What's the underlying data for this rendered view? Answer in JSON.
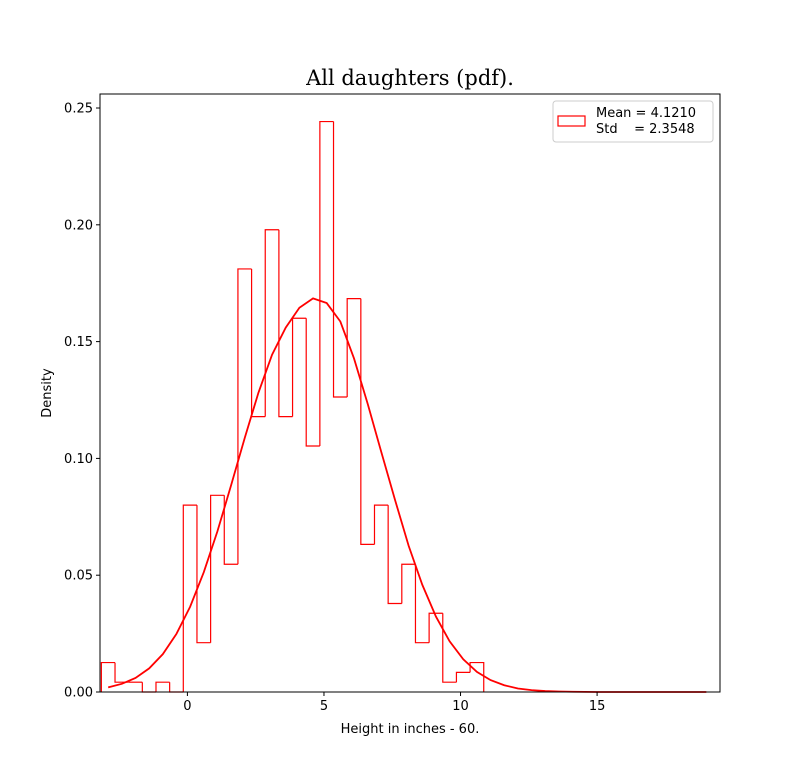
{
  "chart_data": {
    "type": "bar",
    "title": "All daughters (pdf).",
    "xlabel": "Height in inches - 60.",
    "ylabel": "Density",
    "xlim": [
      -3.2,
      19.5
    ],
    "ylim": [
      0,
      0.256
    ],
    "xticks": [
      0,
      5,
      10,
      15
    ],
    "yticks": [
      0.0,
      0.05,
      0.1,
      0.15,
      0.2,
      0.25
    ],
    "xtick_labels": [
      "0",
      "5",
      "10",
      "15"
    ],
    "ytick_labels": [
      "0.00",
      "0.05",
      "0.10",
      "0.15",
      "0.20",
      "0.25"
    ],
    "grid": false,
    "legend_position": "top-right",
    "color": "#ff0000",
    "histogram": {
      "style": "step",
      "bin_edges": [
        -3.15,
        -2.65,
        -2.15,
        -1.65,
        -1.15,
        -0.65,
        -0.15,
        0.35,
        0.85,
        1.35,
        1.85,
        2.35,
        2.85,
        3.35,
        3.85,
        4.35,
        4.85,
        5.35,
        5.85,
        6.35,
        6.85,
        7.35,
        7.85,
        8.35,
        8.85,
        9.35,
        9.85,
        10.35,
        10.85
      ],
      "density": [
        0.0126,
        0.0042,
        0.0042,
        0.0,
        0.0042,
        0.0,
        0.08,
        0.0211,
        0.0842,
        0.0547,
        0.1811,
        0.1179,
        0.1979,
        0.1179,
        0.16,
        0.1053,
        0.2442,
        0.1263,
        0.1684,
        0.0632,
        0.08,
        0.0379,
        0.0547,
        0.0211,
        0.0337,
        0.0042,
        0.0084,
        0.0126
      ]
    },
    "curve": {
      "type": "line",
      "x": [
        -2.9,
        -2.4,
        -1.9,
        -1.4,
        -0.9,
        -0.4,
        0.1,
        0.6,
        1.1,
        1.6,
        2.1,
        2.6,
        3.1,
        3.6,
        4.1,
        4.6,
        5.1,
        5.6,
        6.1,
        6.6,
        7.1,
        7.6,
        8.1,
        8.6,
        9.1,
        9.6,
        10.1,
        10.6,
        11.1,
        11.6,
        12.1,
        12.6,
        13.1,
        13.6,
        14.1,
        15.0,
        16.0,
        17.0,
        18.0,
        19.0
      ],
      "y": [
        0.002,
        0.0035,
        0.006,
        0.0101,
        0.0162,
        0.0249,
        0.0365,
        0.0513,
        0.0688,
        0.0885,
        0.1088,
        0.1281,
        0.1444,
        0.156,
        0.1645,
        0.1685,
        0.1665,
        0.1586,
        0.1428,
        0.1234,
        0.1027,
        0.0823,
        0.0626,
        0.0459,
        0.0323,
        0.0217,
        0.014,
        0.0086,
        0.0051,
        0.0029,
        0.0015,
        0.0008,
        0.0004,
        0.0002,
        0.0001,
        0.0,
        0.0,
        0.0,
        0.0,
        0.0
      ]
    },
    "legend": {
      "line1": "Mean = 4.1210",
      "line2": "Std    = 2.3548"
    }
  }
}
